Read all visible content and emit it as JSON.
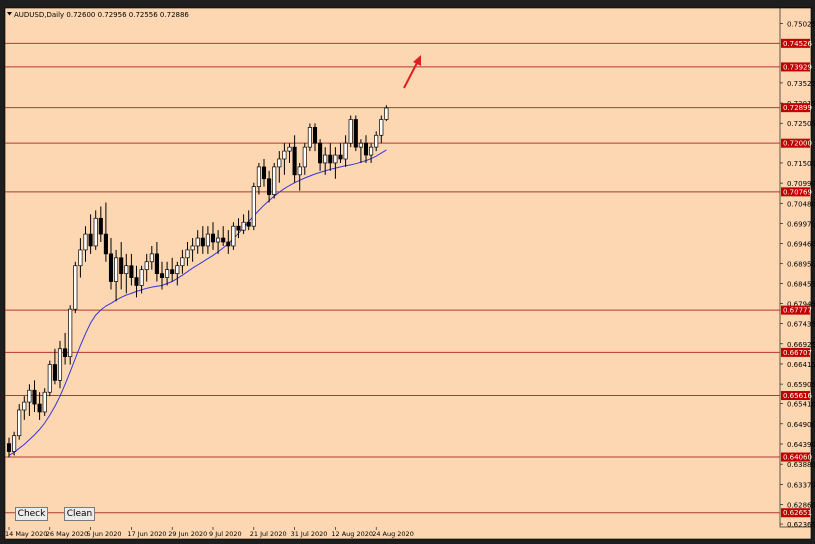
{
  "toolbar": {
    "check_label": "Check",
    "clean_label": "Clean"
  },
  "colors": {
    "background": "#fcd7b2",
    "candle_outline": "#000000",
    "bullish_body": "#ffffff",
    "bearish_body": "#000000",
    "moving_average": "#3636d8",
    "level_line": "#b03a2e",
    "level_label_bg": "#c00000",
    "arrow": "#e02020"
  },
  "chart_data": {
    "type": "candlestick",
    "title": "AUDUSD,Daily  0.72600 0.72956 0.72556 0.72886",
    "ylim": [
      0.6229,
      0.7542
    ],
    "y_ticks": [
      "0.75025",
      "0.73525",
      "0.73015",
      "0.72505",
      "0.71500",
      "0.70990",
      "0.70480",
      "0.69970",
      "0.69460",
      "0.68950",
      "0.68455",
      "0.67945",
      "0.67435",
      "0.66925",
      "0.66415",
      "0.65905",
      "0.65410",
      "0.64900",
      "0.64390",
      "0.63880",
      "0.63370",
      "0.62860",
      "0.62365"
    ],
    "x_labels": [
      {
        "i": 0,
        "label": "14 May 2020"
      },
      {
        "i": 8,
        "label": "26 May 2020"
      },
      {
        "i": 16,
        "label": "5 Jun 2020"
      },
      {
        "i": 24,
        "label": "17 Jun 2020"
      },
      {
        "i": 32,
        "label": "29 Jun 2020"
      },
      {
        "i": 40,
        "label": "9 Jul 2020"
      },
      {
        "i": 48,
        "label": "21 Jul 2020"
      },
      {
        "i": 56,
        "label": "31 Jul 2020"
      },
      {
        "i": 64,
        "label": "12 Aug 2020"
      },
      {
        "i": 72,
        "label": "24 Aug 2020"
      }
    ],
    "levels": [
      {
        "label": "0.74526",
        "value": 0.74526
      },
      {
        "label": "0.73929",
        "value": 0.73929
      },
      {
        "label": "0.72899",
        "value": 0.72899
      },
      {
        "label": "0.72000",
        "value": 0.72
      },
      {
        "label": "0.70769",
        "value": 0.70769
      },
      {
        "label": "0.67777",
        "value": 0.67777
      },
      {
        "label": "0.66707",
        "value": 0.66707
      },
      {
        "label": "0.65616",
        "value": 0.65616
      },
      {
        "label": "0.64060",
        "value": 0.6406
      },
      {
        "label": "0.62651",
        "value": 0.62651
      }
    ],
    "candles": [
      [
        0.644,
        0.6455,
        0.6405,
        0.642
      ],
      [
        0.642,
        0.647,
        0.641,
        0.646
      ],
      [
        0.646,
        0.654,
        0.645,
        0.6525
      ],
      [
        0.6525,
        0.656,
        0.65,
        0.6545
      ],
      [
        0.6545,
        0.659,
        0.651,
        0.6575
      ],
      [
        0.6575,
        0.66,
        0.652,
        0.654
      ],
      [
        0.654,
        0.657,
        0.65,
        0.652
      ],
      [
        0.652,
        0.658,
        0.651,
        0.657
      ],
      [
        0.657,
        0.665,
        0.656,
        0.664
      ],
      [
        0.664,
        0.668,
        0.659,
        0.66
      ],
      [
        0.66,
        0.67,
        0.658,
        0.668
      ],
      [
        0.668,
        0.672,
        0.664,
        0.666
      ],
      [
        0.666,
        0.679,
        0.664,
        0.678
      ],
      [
        0.678,
        0.69,
        0.677,
        0.689
      ],
      [
        0.689,
        0.696,
        0.686,
        0.693
      ],
      [
        0.693,
        0.699,
        0.69,
        0.697
      ],
      [
        0.697,
        0.702,
        0.692,
        0.694
      ],
      [
        0.694,
        0.703,
        0.693,
        0.701
      ],
      [
        0.701,
        0.704,
        0.695,
        0.697
      ],
      [
        0.697,
        0.705,
        0.69,
        0.692
      ],
      [
        0.692,
        0.696,
        0.683,
        0.685
      ],
      [
        0.685,
        0.693,
        0.68,
        0.691
      ],
      [
        0.691,
        0.695,
        0.683,
        0.687
      ],
      [
        0.687,
        0.692,
        0.682,
        0.689
      ],
      [
        0.689,
        0.692,
        0.684,
        0.686
      ],
      [
        0.686,
        0.689,
        0.681,
        0.684
      ],
      [
        0.684,
        0.689,
        0.682,
        0.688
      ],
      [
        0.688,
        0.692,
        0.685,
        0.69
      ],
      [
        0.69,
        0.694,
        0.688,
        0.692
      ],
      [
        0.692,
        0.695,
        0.685,
        0.687
      ],
      [
        0.687,
        0.69,
        0.683,
        0.686
      ],
      [
        0.686,
        0.69,
        0.684,
        0.688
      ],
      [
        0.688,
        0.691,
        0.685,
        0.687
      ],
      [
        0.687,
        0.69,
        0.684,
        0.689
      ],
      [
        0.689,
        0.693,
        0.687,
        0.691
      ],
      [
        0.691,
        0.695,
        0.689,
        0.693
      ],
      [
        0.693,
        0.696,
        0.69,
        0.694
      ],
      [
        0.694,
        0.698,
        0.692,
        0.696
      ],
      [
        0.696,
        0.699,
        0.692,
        0.694
      ],
      [
        0.694,
        0.699,
        0.692,
        0.697
      ],
      [
        0.697,
        0.7,
        0.693,
        0.695
      ],
      [
        0.695,
        0.698,
        0.692,
        0.696
      ],
      [
        0.696,
        0.699,
        0.694,
        0.695
      ],
      [
        0.695,
        0.698,
        0.692,
        0.694
      ],
      [
        0.694,
        0.7,
        0.693,
        0.699
      ],
      [
        0.699,
        0.701,
        0.696,
        0.698
      ],
      [
        0.698,
        0.702,
        0.697,
        0.7
      ],
      [
        0.7,
        0.703,
        0.698,
        0.699
      ],
      [
        0.699,
        0.71,
        0.698,
        0.709
      ],
      [
        0.709,
        0.715,
        0.707,
        0.714
      ],
      [
        0.714,
        0.716,
        0.709,
        0.711
      ],
      [
        0.711,
        0.713,
        0.705,
        0.707
      ],
      [
        0.707,
        0.715,
        0.706,
        0.714
      ],
      [
        0.714,
        0.718,
        0.71,
        0.716
      ],
      [
        0.716,
        0.72,
        0.712,
        0.718
      ],
      [
        0.718,
        0.72,
        0.715,
        0.719
      ],
      [
        0.719,
        0.722,
        0.71,
        0.712
      ],
      [
        0.712,
        0.715,
        0.708,
        0.714
      ],
      [
        0.714,
        0.72,
        0.712,
        0.719
      ],
      [
        0.719,
        0.725,
        0.718,
        0.724
      ],
      [
        0.724,
        0.725,
        0.718,
        0.72
      ],
      [
        0.72,
        0.721,
        0.713,
        0.715
      ],
      [
        0.715,
        0.719,
        0.712,
        0.717
      ],
      [
        0.717,
        0.72,
        0.713,
        0.715
      ],
      [
        0.715,
        0.719,
        0.711,
        0.717
      ],
      [
        0.717,
        0.72,
        0.715,
        0.716
      ],
      [
        0.716,
        0.722,
        0.714,
        0.72
      ],
      [
        0.72,
        0.727,
        0.719,
        0.726
      ],
      [
        0.726,
        0.727,
        0.718,
        0.719
      ],
      [
        0.719,
        0.721,
        0.715,
        0.72
      ],
      [
        0.72,
        0.722,
        0.715,
        0.717
      ],
      [
        0.717,
        0.72,
        0.715,
        0.719
      ],
      [
        0.719,
        0.723,
        0.718,
        0.722
      ],
      [
        0.722,
        0.727,
        0.72,
        0.726
      ],
      [
        0.726,
        0.7296,
        0.7256,
        0.7289
      ]
    ],
    "moving_average": [
      0.641,
      0.6418,
      0.6428,
      0.6438,
      0.645,
      0.6462,
      0.6476,
      0.6492,
      0.6512,
      0.6534,
      0.656,
      0.659,
      0.6622,
      0.6655,
      0.6688,
      0.6718,
      0.6745,
      0.6765,
      0.6778,
      0.6788,
      0.6795,
      0.6803,
      0.681,
      0.6816,
      0.682,
      0.6825,
      0.6829,
      0.6833,
      0.6836,
      0.6838,
      0.684,
      0.6845,
      0.685,
      0.6858,
      0.6866,
      0.6875,
      0.6884,
      0.6892,
      0.69,
      0.6908,
      0.6916,
      0.6925,
      0.6935,
      0.6946,
      0.6958,
      0.6972,
      0.6987,
      0.7002,
      0.7016,
      0.703,
      0.7043,
      0.7055,
      0.7066,
      0.7076,
      0.7085,
      0.7093,
      0.71,
      0.7106,
      0.7112,
      0.7117,
      0.7122,
      0.7126,
      0.713,
      0.7134,
      0.7137,
      0.714,
      0.7143,
      0.7145,
      0.7148,
      0.7152,
      0.7156,
      0.7161,
      0.7167,
      0.7175,
      0.7183
    ]
  }
}
